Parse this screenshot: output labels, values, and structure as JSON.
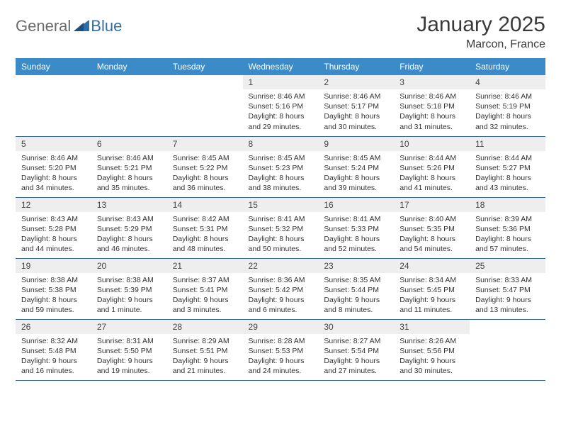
{
  "logo": {
    "general": "General",
    "blue": "Blue"
  },
  "title": "January 2025",
  "location": "Marcon, France",
  "colors": {
    "header_bg": "#3b8bc9",
    "header_text": "#ffffff",
    "daynum_bg": "#eeeeee",
    "row_border": "#3b6a9c",
    "logo_gray": "#6b6b6b",
    "logo_blue": "#2f6fa8",
    "background": "#ffffff",
    "text": "#333333"
  },
  "weekdays": [
    "Sunday",
    "Monday",
    "Tuesday",
    "Wednesday",
    "Thursday",
    "Friday",
    "Saturday"
  ],
  "weeks": [
    [
      {
        "empty": true
      },
      {
        "empty": true
      },
      {
        "empty": true
      },
      {
        "num": "1",
        "sunrise": "Sunrise: 8:46 AM",
        "sunset": "Sunset: 5:16 PM",
        "daylight": "Daylight: 8 hours and 29 minutes."
      },
      {
        "num": "2",
        "sunrise": "Sunrise: 8:46 AM",
        "sunset": "Sunset: 5:17 PM",
        "daylight": "Daylight: 8 hours and 30 minutes."
      },
      {
        "num": "3",
        "sunrise": "Sunrise: 8:46 AM",
        "sunset": "Sunset: 5:18 PM",
        "daylight": "Daylight: 8 hours and 31 minutes."
      },
      {
        "num": "4",
        "sunrise": "Sunrise: 8:46 AM",
        "sunset": "Sunset: 5:19 PM",
        "daylight": "Daylight: 8 hours and 32 minutes."
      }
    ],
    [
      {
        "num": "5",
        "sunrise": "Sunrise: 8:46 AM",
        "sunset": "Sunset: 5:20 PM",
        "daylight": "Daylight: 8 hours and 34 minutes."
      },
      {
        "num": "6",
        "sunrise": "Sunrise: 8:46 AM",
        "sunset": "Sunset: 5:21 PM",
        "daylight": "Daylight: 8 hours and 35 minutes."
      },
      {
        "num": "7",
        "sunrise": "Sunrise: 8:45 AM",
        "sunset": "Sunset: 5:22 PM",
        "daylight": "Daylight: 8 hours and 36 minutes."
      },
      {
        "num": "8",
        "sunrise": "Sunrise: 8:45 AM",
        "sunset": "Sunset: 5:23 PM",
        "daylight": "Daylight: 8 hours and 38 minutes."
      },
      {
        "num": "9",
        "sunrise": "Sunrise: 8:45 AM",
        "sunset": "Sunset: 5:24 PM",
        "daylight": "Daylight: 8 hours and 39 minutes."
      },
      {
        "num": "10",
        "sunrise": "Sunrise: 8:44 AM",
        "sunset": "Sunset: 5:26 PM",
        "daylight": "Daylight: 8 hours and 41 minutes."
      },
      {
        "num": "11",
        "sunrise": "Sunrise: 8:44 AM",
        "sunset": "Sunset: 5:27 PM",
        "daylight": "Daylight: 8 hours and 43 minutes."
      }
    ],
    [
      {
        "num": "12",
        "sunrise": "Sunrise: 8:43 AM",
        "sunset": "Sunset: 5:28 PM",
        "daylight": "Daylight: 8 hours and 44 minutes."
      },
      {
        "num": "13",
        "sunrise": "Sunrise: 8:43 AM",
        "sunset": "Sunset: 5:29 PM",
        "daylight": "Daylight: 8 hours and 46 minutes."
      },
      {
        "num": "14",
        "sunrise": "Sunrise: 8:42 AM",
        "sunset": "Sunset: 5:31 PM",
        "daylight": "Daylight: 8 hours and 48 minutes."
      },
      {
        "num": "15",
        "sunrise": "Sunrise: 8:41 AM",
        "sunset": "Sunset: 5:32 PM",
        "daylight": "Daylight: 8 hours and 50 minutes."
      },
      {
        "num": "16",
        "sunrise": "Sunrise: 8:41 AM",
        "sunset": "Sunset: 5:33 PM",
        "daylight": "Daylight: 8 hours and 52 minutes."
      },
      {
        "num": "17",
        "sunrise": "Sunrise: 8:40 AM",
        "sunset": "Sunset: 5:35 PM",
        "daylight": "Daylight: 8 hours and 54 minutes."
      },
      {
        "num": "18",
        "sunrise": "Sunrise: 8:39 AM",
        "sunset": "Sunset: 5:36 PM",
        "daylight": "Daylight: 8 hours and 57 minutes."
      }
    ],
    [
      {
        "num": "19",
        "sunrise": "Sunrise: 8:38 AM",
        "sunset": "Sunset: 5:38 PM",
        "daylight": "Daylight: 8 hours and 59 minutes."
      },
      {
        "num": "20",
        "sunrise": "Sunrise: 8:38 AM",
        "sunset": "Sunset: 5:39 PM",
        "daylight": "Daylight: 9 hours and 1 minute."
      },
      {
        "num": "21",
        "sunrise": "Sunrise: 8:37 AM",
        "sunset": "Sunset: 5:41 PM",
        "daylight": "Daylight: 9 hours and 3 minutes."
      },
      {
        "num": "22",
        "sunrise": "Sunrise: 8:36 AM",
        "sunset": "Sunset: 5:42 PM",
        "daylight": "Daylight: 9 hours and 6 minutes."
      },
      {
        "num": "23",
        "sunrise": "Sunrise: 8:35 AM",
        "sunset": "Sunset: 5:44 PM",
        "daylight": "Daylight: 9 hours and 8 minutes."
      },
      {
        "num": "24",
        "sunrise": "Sunrise: 8:34 AM",
        "sunset": "Sunset: 5:45 PM",
        "daylight": "Daylight: 9 hours and 11 minutes."
      },
      {
        "num": "25",
        "sunrise": "Sunrise: 8:33 AM",
        "sunset": "Sunset: 5:47 PM",
        "daylight": "Daylight: 9 hours and 13 minutes."
      }
    ],
    [
      {
        "num": "26",
        "sunrise": "Sunrise: 8:32 AM",
        "sunset": "Sunset: 5:48 PM",
        "daylight": "Daylight: 9 hours and 16 minutes."
      },
      {
        "num": "27",
        "sunrise": "Sunrise: 8:31 AM",
        "sunset": "Sunset: 5:50 PM",
        "daylight": "Daylight: 9 hours and 19 minutes."
      },
      {
        "num": "28",
        "sunrise": "Sunrise: 8:29 AM",
        "sunset": "Sunset: 5:51 PM",
        "daylight": "Daylight: 9 hours and 21 minutes."
      },
      {
        "num": "29",
        "sunrise": "Sunrise: 8:28 AM",
        "sunset": "Sunset: 5:53 PM",
        "daylight": "Daylight: 9 hours and 24 minutes."
      },
      {
        "num": "30",
        "sunrise": "Sunrise: 8:27 AM",
        "sunset": "Sunset: 5:54 PM",
        "daylight": "Daylight: 9 hours and 27 minutes."
      },
      {
        "num": "31",
        "sunrise": "Sunrise: 8:26 AM",
        "sunset": "Sunset: 5:56 PM",
        "daylight": "Daylight: 9 hours and 30 minutes."
      },
      {
        "empty": true
      }
    ]
  ]
}
